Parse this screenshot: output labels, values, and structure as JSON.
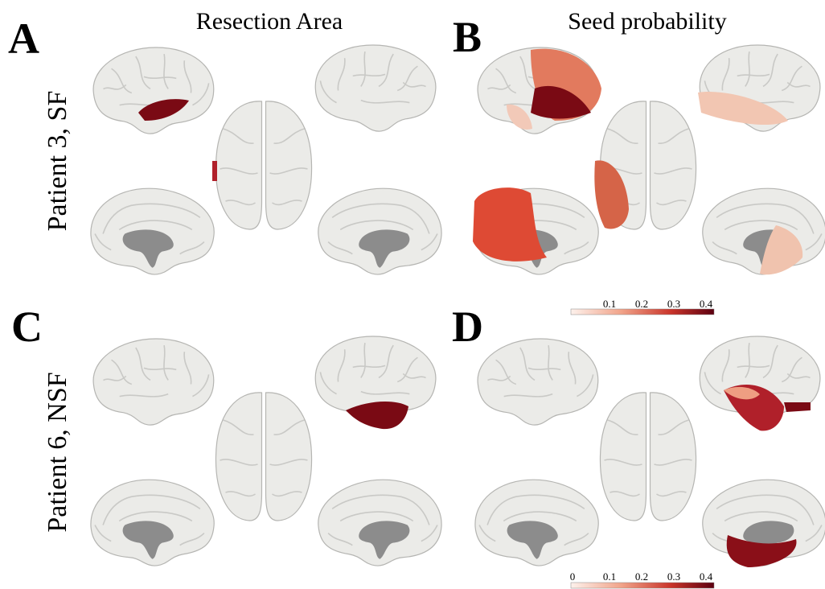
{
  "panels": [
    {
      "letter": "A"
    },
    {
      "letter": "B"
    },
    {
      "letter": "C"
    },
    {
      "letter": "D"
    }
  ],
  "columns": [
    {
      "title": "Resection Area"
    },
    {
      "title": "Seed probability"
    }
  ],
  "rows": [
    {
      "label": "Patient 3, SF"
    },
    {
      "label": "Patient 6, NSF"
    }
  ],
  "colorbars": [
    {
      "ticks": [
        "0.1",
        "0.2",
        "0.3",
        "0.4"
      ]
    },
    {
      "ticks": [
        "0",
        "0.1",
        "0.2",
        "0.3",
        "0.4"
      ]
    }
  ]
}
